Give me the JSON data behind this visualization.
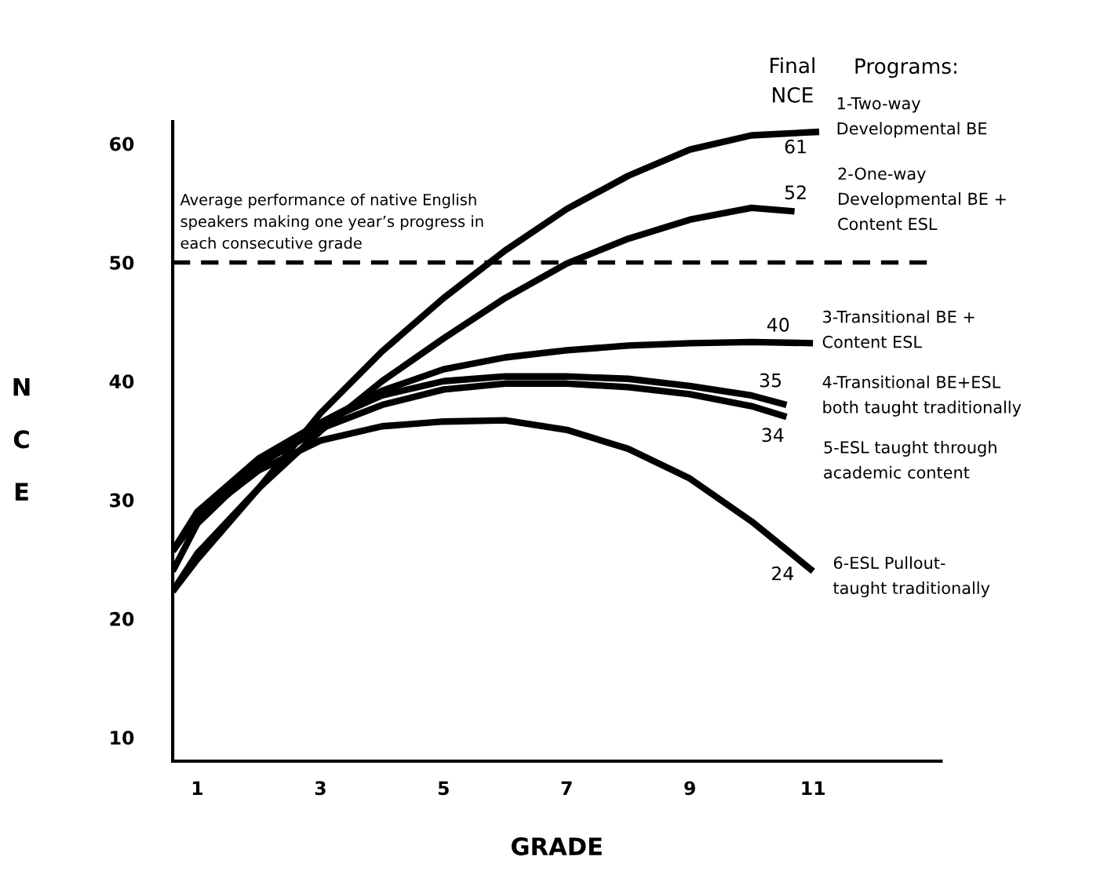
{
  "chart_data": {
    "type": "line",
    "xlabel": "GRADE",
    "ylabel": "NCE",
    "xlim": [
      0.6,
      13.08
    ],
    "ylim": [
      8.0,
      61.85
    ],
    "xticks": [
      1,
      3,
      5,
      7,
      9,
      11
    ],
    "yticks": [
      10,
      20,
      30,
      40,
      50,
      60
    ],
    "grid": false,
    "legend": false,
    "marker": "none",
    "line_style": "solid",
    "series": [
      {
        "color": "#000000",
        "x": [
          0.6,
          1,
          2,
          3,
          4,
          5,
          6,
          7,
          8,
          9,
          10,
          11.1
        ],
        "values": [
          22.3,
          25,
          31,
          37.3,
          42.5,
          47,
          51,
          54.5,
          57.3,
          59.5,
          60.7,
          61
        ]
      },
      {
        "color": "#000000",
        "x": [
          0.6,
          1,
          2,
          3,
          4,
          5,
          6,
          7,
          8,
          9,
          10,
          10.7
        ],
        "values": [
          22.3,
          25.5,
          31,
          35.8,
          40,
          43.6,
          47,
          49.9,
          52,
          53.6,
          54.6,
          54.3
        ]
      },
      {
        "color": "#000000",
        "x": [
          0.6,
          1,
          2,
          3,
          4,
          5,
          6,
          7,
          8,
          9,
          10,
          11
        ],
        "values": [
          24,
          28,
          33,
          36.5,
          39.2,
          41,
          42,
          42.6,
          43,
          43.2,
          43.3,
          43.2
        ]
      },
      {
        "color": "#000000",
        "x": [
          0.6,
          1,
          2,
          3,
          4,
          5,
          6,
          7,
          8,
          9,
          10,
          10.57
        ],
        "values": [
          25.7,
          29,
          33.5,
          36.5,
          38.8,
          40,
          40.4,
          40.4,
          40.2,
          39.6,
          38.8,
          38.0
        ]
      },
      {
        "color": "#000000",
        "x": [
          0.6,
          1,
          2,
          3,
          4,
          5,
          6,
          7,
          8,
          9,
          10,
          10.57
        ],
        "values": [
          25.7,
          28.8,
          33,
          36,
          38,
          39.3,
          39.8,
          39.8,
          39.5,
          38.9,
          37.9,
          37.0
        ]
      },
      {
        "color": "#000000",
        "x": [
          0.6,
          1,
          2,
          3,
          4,
          5,
          6,
          7,
          8,
          9,
          10,
          11
        ],
        "values": [
          25.7,
          28.5,
          32.5,
          35,
          36.2,
          36.6,
          36.7,
          35.9,
          34.3,
          31.8,
          28.2,
          24
        ]
      }
    ],
    "ref_lines": [
      {
        "axis": "y",
        "value": 50,
        "label": "Average performance of native English\nspeakers making one year’s progress in\neach consecutive grade",
        "color": "#000000",
        "line_style": "dashed"
      }
    ],
    "annotations": [
      "Final\nNCE",
      "Programs:",
      "1-Two-way\nDevelopmental BE",
      "2-One-way\nDevelopmental BE +\nContent ESL",
      "3-Transitional BE +\nContent ESL",
      "4-Transitional BE+ESL\nboth taught traditionally",
      "5-ESL taught through\nacademic content",
      "6-ESL Pullout-\ntaught traditionally",
      "61",
      "52",
      "40",
      "35",
      "34",
      "24"
    ]
  }
}
